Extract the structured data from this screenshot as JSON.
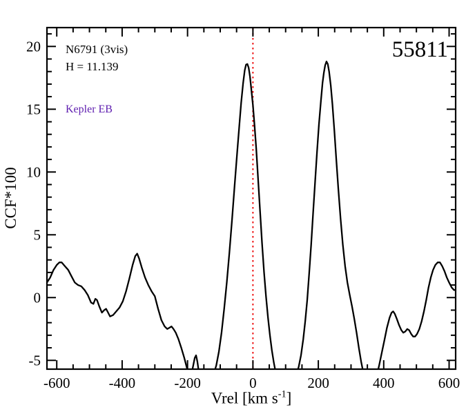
{
  "chart_data": {
    "type": "line",
    "title": "55811",
    "annotations": {
      "target_label": "N6791 (3vis)",
      "hmag_label": "H = 11.139",
      "class_label": "Kepler EB",
      "class_color": "#5e1daf",
      "id_label": "55811"
    },
    "xlabel": {
      "pre": "Vrel [km s",
      "sup": "-1",
      "post": "]"
    },
    "ylabel": "CCF*100",
    "xlim": [
      -630,
      620
    ],
    "ylim": [
      -5.7,
      21.5
    ],
    "x_major_ticks": [
      -600,
      -400,
      -200,
      0,
      200,
      400,
      600
    ],
    "x_minor_step": 50,
    "x_major_spacing": 200,
    "y_major_ticks": [
      -5,
      0,
      5,
      10,
      15,
      20
    ],
    "y_minor_step": 1,
    "y_major_spacing": 5,
    "grid": false,
    "legend": false,
    "line_color": "#000000",
    "frame_color": "#000000",
    "reference_line": {
      "x": 0,
      "color": "#ee1111",
      "style": "dotted"
    },
    "series": [
      {
        "name": "CCF",
        "points": [
          [
            -630,
            1.2
          ],
          [
            -620,
            1.6
          ],
          [
            -610,
            2.2
          ],
          [
            -600,
            2.6
          ],
          [
            -592,
            2.8
          ],
          [
            -585,
            2.8
          ],
          [
            -575,
            2.5
          ],
          [
            -565,
            2.2
          ],
          [
            -555,
            1.7
          ],
          [
            -545,
            1.2
          ],
          [
            -535,
            1.0
          ],
          [
            -525,
            0.9
          ],
          [
            -515,
            0.6
          ],
          [
            -505,
            0.2
          ],
          [
            -495,
            -0.4
          ],
          [
            -488,
            -0.5
          ],
          [
            -482,
            -0.1
          ],
          [
            -477,
            -0.2
          ],
          [
            -470,
            -0.7
          ],
          [
            -462,
            -1.2
          ],
          [
            -455,
            -1.0
          ],
          [
            -449,
            -0.9
          ],
          [
            -443,
            -1.2
          ],
          [
            -437,
            -1.5
          ],
          [
            -428,
            -1.4
          ],
          [
            -418,
            -1.1
          ],
          [
            -408,
            -0.8
          ],
          [
            -398,
            -0.3
          ],
          [
            -388,
            0.5
          ],
          [
            -378,
            1.5
          ],
          [
            -368,
            2.6
          ],
          [
            -360,
            3.3
          ],
          [
            -354,
            3.5
          ],
          [
            -348,
            3.1
          ],
          [
            -340,
            2.4
          ],
          [
            -330,
            1.6
          ],
          [
            -320,
            1.0
          ],
          [
            -310,
            0.5
          ],
          [
            -300,
            0.1
          ],
          [
            -290,
            -0.9
          ],
          [
            -280,
            -1.8
          ],
          [
            -270,
            -2.3
          ],
          [
            -262,
            -2.5
          ],
          [
            -255,
            -2.4
          ],
          [
            -249,
            -2.3
          ],
          [
            -243,
            -2.5
          ],
          [
            -236,
            -2.8
          ],
          [
            -228,
            -3.3
          ],
          [
            -219,
            -4.0
          ],
          [
            -210,
            -4.8
          ],
          [
            -202,
            -5.6
          ],
          [
            -196,
            -6.1
          ],
          [
            -190,
            -6.2
          ],
          [
            -184,
            -5.6
          ],
          [
            -178,
            -4.8
          ],
          [
            -174,
            -4.6
          ],
          [
            -170,
            -5.1
          ],
          [
            -165,
            -6.0
          ],
          [
            -158,
            -6.6
          ],
          [
            -150,
            -6.8
          ],
          [
            -140,
            -6.8
          ],
          [
            -130,
            -6.5
          ],
          [
            -120,
            -6.1
          ],
          [
            -112,
            -5.4
          ],
          [
            -104,
            -4.3
          ],
          [
            -96,
            -2.8
          ],
          [
            -88,
            -0.9
          ],
          [
            -80,
            1.2
          ],
          [
            -72,
            3.6
          ],
          [
            -64,
            6.2
          ],
          [
            -56,
            8.9
          ],
          [
            -48,
            11.6
          ],
          [
            -42,
            13.6
          ],
          [
            -36,
            15.5
          ],
          [
            -30,
            17.1
          ],
          [
            -25,
            18.1
          ],
          [
            -21,
            18.55
          ],
          [
            -17,
            18.6
          ],
          [
            -13,
            18.3
          ],
          [
            -9,
            17.6
          ],
          [
            -5,
            16.6
          ],
          [
            0,
            15.3
          ],
          [
            5,
            13.7
          ],
          [
            10,
            11.9
          ],
          [
            16,
            9.4
          ],
          [
            22,
            6.8
          ],
          [
            28,
            4.3
          ],
          [
            34,
            2.0
          ],
          [
            40,
            0.1
          ],
          [
            46,
            -1.6
          ],
          [
            52,
            -3.0
          ],
          [
            58,
            -4.2
          ],
          [
            64,
            -5.2
          ],
          [
            70,
            -6.0
          ],
          [
            78,
            -6.7
          ],
          [
            86,
            -7.1
          ],
          [
            95,
            -7.3
          ],
          [
            105,
            -7.3
          ],
          [
            115,
            -7.1
          ],
          [
            124,
            -6.7
          ],
          [
            132,
            -6.2
          ],
          [
            140,
            -5.5
          ],
          [
            147,
            -4.6
          ],
          [
            154,
            -3.3
          ],
          [
            160,
            -1.9
          ],
          [
            166,
            -0.2
          ],
          [
            172,
            1.9
          ],
          [
            178,
            4.2
          ],
          [
            184,
            6.7
          ],
          [
            190,
            9.2
          ],
          [
            196,
            11.6
          ],
          [
            202,
            13.8
          ],
          [
            208,
            15.7
          ],
          [
            213,
            17.1
          ],
          [
            217,
            17.9
          ],
          [
            221,
            18.5
          ],
          [
            225,
            18.8
          ],
          [
            229,
            18.6
          ],
          [
            233,
            18.0
          ],
          [
            238,
            16.9
          ],
          [
            243,
            15.4
          ],
          [
            249,
            13.3
          ],
          [
            255,
            11.0
          ],
          [
            261,
            8.7
          ],
          [
            268,
            6.3
          ],
          [
            275,
            4.2
          ],
          [
            282,
            2.5
          ],
          [
            289,
            1.2
          ],
          [
            296,
            0.2
          ],
          [
            303,
            -0.7
          ],
          [
            310,
            -1.7
          ],
          [
            317,
            -2.8
          ],
          [
            324,
            -4.0
          ],
          [
            331,
            -5.1
          ],
          [
            338,
            -6.0
          ],
          [
            346,
            -6.7
          ],
          [
            354,
            -7.1
          ],
          [
            362,
            -7.2
          ],
          [
            370,
            -6.9
          ],
          [
            378,
            -6.3
          ],
          [
            386,
            -5.4
          ],
          [
            394,
            -4.4
          ],
          [
            402,
            -3.4
          ],
          [
            410,
            -2.4
          ],
          [
            418,
            -1.6
          ],
          [
            424,
            -1.2
          ],
          [
            429,
            -1.1
          ],
          [
            434,
            -1.3
          ],
          [
            440,
            -1.7
          ],
          [
            447,
            -2.2
          ],
          [
            454,
            -2.6
          ],
          [
            460,
            -2.8
          ],
          [
            466,
            -2.7
          ],
          [
            472,
            -2.5
          ],
          [
            478,
            -2.6
          ],
          [
            484,
            -2.9
          ],
          [
            490,
            -3.1
          ],
          [
            496,
            -3.1
          ],
          [
            502,
            -2.9
          ],
          [
            509,
            -2.5
          ],
          [
            516,
            -1.9
          ],
          [
            523,
            -1.1
          ],
          [
            530,
            -0.2
          ],
          [
            537,
            0.8
          ],
          [
            544,
            1.6
          ],
          [
            551,
            2.2
          ],
          [
            558,
            2.6
          ],
          [
            565,
            2.8
          ],
          [
            572,
            2.8
          ],
          [
            579,
            2.5
          ],
          [
            586,
            2.1
          ],
          [
            593,
            1.6
          ],
          [
            600,
            1.2
          ],
          [
            608,
            0.8
          ],
          [
            615,
            0.6
          ],
          [
            620,
            0.6
          ]
        ]
      }
    ]
  }
}
